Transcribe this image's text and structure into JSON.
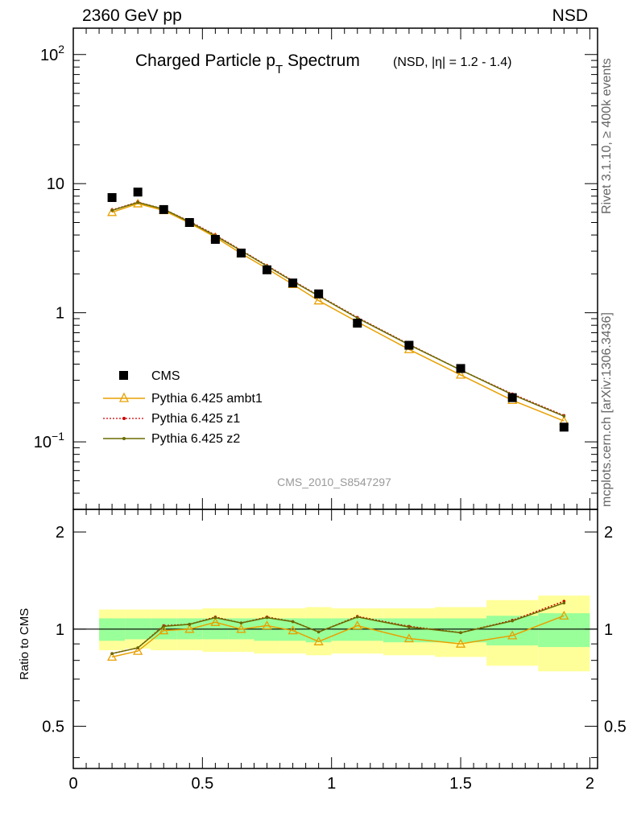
{
  "header": {
    "left": "2360 GeV pp",
    "right": "NSD"
  },
  "side_text": {
    "top": "Rivet 3.1.10, ≥ 400k events",
    "bottom": "mcplots.cern.ch [arXiv:1306.3436]"
  },
  "chart_data": {
    "type": "line",
    "title_main": "Charged Particle p",
    "title_sub": "T",
    "title_main2": " Spectrum",
    "title_extra": "(NSD, |η| = 1.2 - 1.4)",
    "watermark": "CMS_2010_S8547297",
    "x_ticks": [
      "0",
      "0.5",
      "1",
      "1.5",
      "2"
    ],
    "xlim": [
      0,
      2.03
    ],
    "main_ylim": [
      0.03,
      160
    ],
    "main_yscale": "log",
    "main_y_ticks": [
      {
        "value": 100,
        "base": "10",
        "exp": "2"
      },
      {
        "value": 10,
        "base": "10",
        "exp": ""
      },
      {
        "value": 1,
        "base": "1",
        "exp": ""
      },
      {
        "value": 0.1,
        "base": "10",
        "exp": "−1"
      }
    ],
    "x": [
      0.15,
      0.25,
      0.35,
      0.45,
      0.55,
      0.65,
      0.75,
      0.85,
      0.95,
      1.1,
      1.3,
      1.5,
      1.7,
      1.9
    ],
    "cms": [
      7.8,
      8.6,
      6.3,
      5.0,
      3.7,
      2.9,
      2.15,
      1.7,
      1.4,
      0.83,
      0.56,
      0.37,
      0.22,
      0.13
    ],
    "series": [
      {
        "name": "Pythia 6.425 ambt1",
        "color": "#e8a000",
        "marker": "triangle",
        "values": [
          6.0,
          7.0,
          6.2,
          4.95,
          3.85,
          2.88,
          2.2,
          1.66,
          1.24,
          0.85,
          0.52,
          0.33,
          0.21,
          0.145
        ]
      },
      {
        "name": "Pythia 6.425 z1",
        "color": "#cc0000",
        "marker": "dot",
        "dash": true,
        "values": [
          6.25,
          7.2,
          6.35,
          5.1,
          4.0,
          3.05,
          2.32,
          1.77,
          1.36,
          0.92,
          0.57,
          0.36,
          0.235,
          0.16
        ]
      },
      {
        "name": "Pythia 6.425 z2",
        "color": "#6b6b00",
        "marker": "dot",
        "values": [
          6.2,
          7.15,
          6.35,
          5.05,
          3.95,
          3.02,
          2.3,
          1.75,
          1.35,
          0.91,
          0.565,
          0.36,
          0.232,
          0.158
        ]
      }
    ],
    "legend": {
      "data_label": "CMS",
      "placement": "lower-left"
    },
    "ratio": {
      "ylabel": "Ratio to CMS",
      "ylim": [
        0.37,
        2.35
      ],
      "yscale": "log",
      "y_ticks": [
        "0.5",
        "1",
        "2"
      ],
      "y_tick_values": [
        0.5,
        1,
        2
      ],
      "bin_edges": [
        0.1,
        0.2,
        0.3,
        0.4,
        0.5,
        0.6,
        0.7,
        0.8,
        0.9,
        1.0,
        1.2,
        1.4,
        1.6,
        1.8,
        2.0
      ],
      "band_inner": [
        [
          0.92,
          1.08
        ],
        [
          0.93,
          1.08
        ],
        [
          0.93,
          1.08
        ],
        [
          0.93,
          1.08
        ],
        [
          0.93,
          1.08
        ],
        [
          0.93,
          1.08
        ],
        [
          0.92,
          1.08
        ],
        [
          0.92,
          1.08
        ],
        [
          0.91,
          1.08
        ],
        [
          0.92,
          1.08
        ],
        [
          0.91,
          1.08
        ],
        [
          0.91,
          1.08
        ],
        [
          0.89,
          1.1
        ],
        [
          0.88,
          1.12
        ]
      ],
      "band_outer": [
        [
          0.86,
          1.15
        ],
        [
          0.87,
          1.15
        ],
        [
          0.86,
          1.15
        ],
        [
          0.86,
          1.15
        ],
        [
          0.85,
          1.16
        ],
        [
          0.85,
          1.16
        ],
        [
          0.84,
          1.16
        ],
        [
          0.84,
          1.16
        ],
        [
          0.83,
          1.17
        ],
        [
          0.84,
          1.16
        ],
        [
          0.83,
          1.16
        ],
        [
          0.82,
          1.17
        ],
        [
          0.77,
          1.23
        ],
        [
          0.74,
          1.27
        ]
      ],
      "series": [
        [
          0.82,
          0.855,
          0.99,
          1.0,
          1.05,
          1.0,
          1.025,
          0.99,
          0.915,
          1.025,
          0.935,
          0.9,
          0.955,
          1.1
        ],
        [
          0.84,
          0.875,
          1.025,
          1.035,
          1.09,
          1.045,
          1.09,
          1.055,
          0.98,
          1.095,
          1.02,
          0.975,
          1.065,
          1.22
        ],
        [
          0.84,
          0.875,
          1.02,
          1.035,
          1.085,
          1.045,
          1.085,
          1.055,
          0.98,
          1.09,
          1.015,
          0.975,
          1.06,
          1.205
        ]
      ]
    }
  }
}
